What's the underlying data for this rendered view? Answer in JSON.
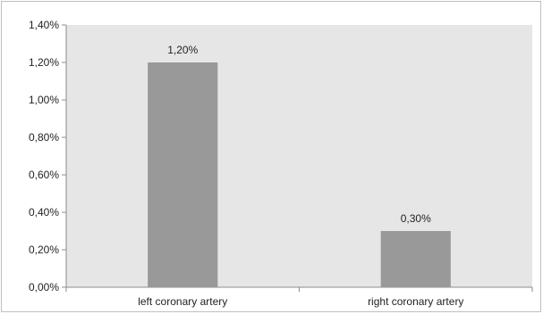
{
  "chart_data": {
    "type": "bar",
    "title": "",
    "xlabel": "",
    "ylabel": "",
    "categories": [
      "left coronary artery",
      "right coronary artery"
    ],
    "values": [
      1.2,
      0.3
    ],
    "data_labels": [
      "1,20%",
      "0,30%"
    ],
    "ylim": [
      0,
      1.4
    ],
    "yticks": [
      0.0,
      0.2,
      0.4,
      0.6,
      0.8,
      1.0,
      1.2,
      1.4
    ],
    "ytick_labels": [
      "0,00%",
      "0,20%",
      "0,40%",
      "0,60%",
      "0,80%",
      "1,00%",
      "1,20%",
      "1,40%"
    ],
    "grid": false,
    "legend": "none",
    "colors": {
      "plot_background": "#e6e6e6",
      "bar_fill": "#999999",
      "axis": "#8c8c8c"
    }
  }
}
